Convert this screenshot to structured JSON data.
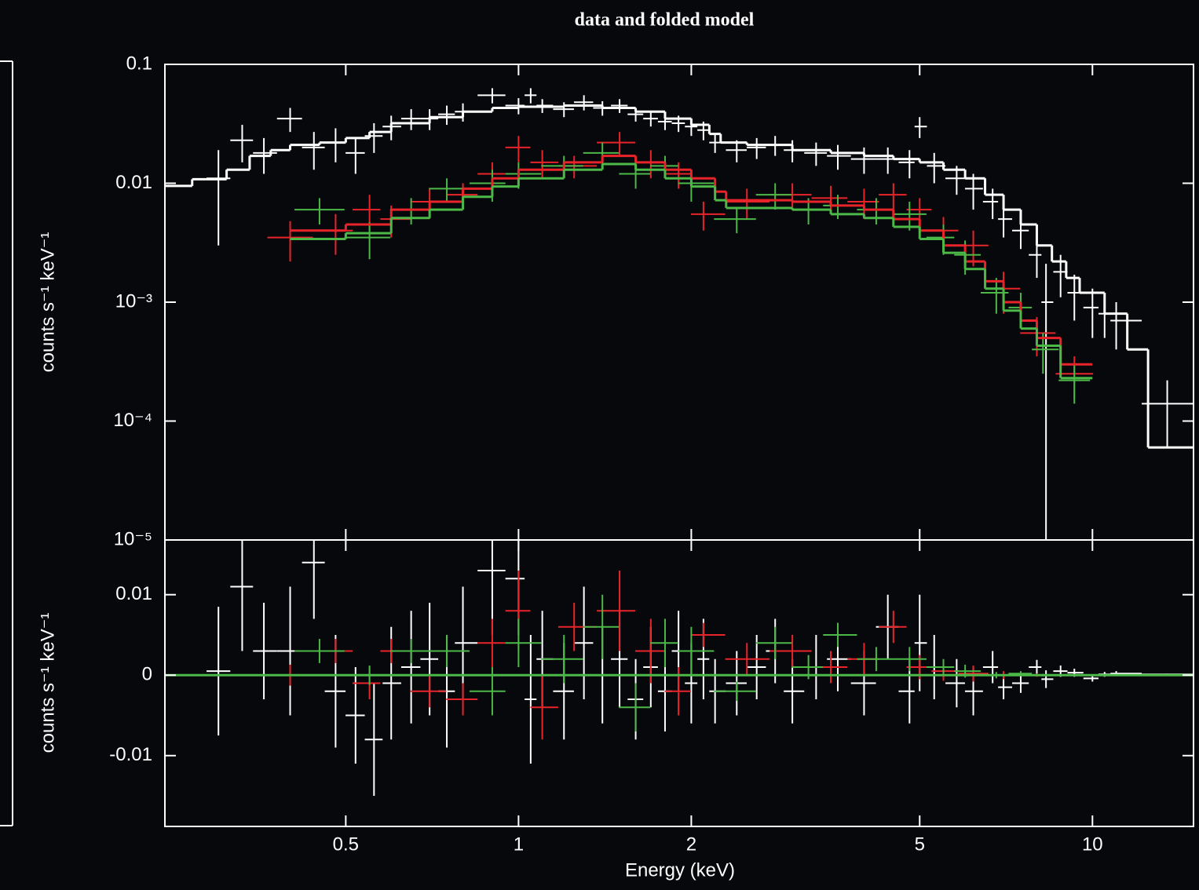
{
  "chart_data": [
    {
      "type": "spectrum",
      "title": "data and folded model",
      "ylabel": "counts s⁻¹ keV⁻¹",
      "xlog": true,
      "ylog": true,
      "xlim": [
        0.242,
        15
      ],
      "ylim": [
        1e-05,
        0.1
      ],
      "yticks": [
        0.1,
        0.01,
        {
          "value": 0.001,
          "label": "10⁻³"
        },
        {
          "value": 0.0001,
          "label": "10⁻⁴"
        },
        {
          "value": 1e-05,
          "label": "10⁻⁵"
        }
      ],
      "series": [
        {
          "kind": "cross",
          "color": "#ffffff",
          "x": [
            0.3,
            0.33,
            0.36,
            0.4,
            0.44,
            0.48,
            0.52,
            0.56,
            0.6,
            0.65,
            0.7,
            0.75,
            0.8,
            0.9,
            1.0,
            1.05,
            1.1,
            1.2,
            1.3,
            1.4,
            1.5,
            1.6,
            1.7,
            1.8,
            1.9,
            2.0,
            2.1,
            2.2,
            2.4,
            2.6,
            2.8,
            3.0,
            3.3,
            3.6,
            4.0,
            4.4,
            4.8,
            5.0,
            5.3,
            5.8,
            6.2,
            6.7,
            7.0,
            7.5,
            8.0,
            8.3,
            8.8,
            9.3,
            10.0,
            10.5,
            11.0,
            13.5
          ],
          "values": [
            0.011,
            0.023,
            0.018,
            0.035,
            0.02,
            0.022,
            0.018,
            0.025,
            0.03,
            0.035,
            0.035,
            0.038,
            0.04,
            0.055,
            0.045,
            0.055,
            0.045,
            0.042,
            0.048,
            0.043,
            0.045,
            0.038,
            0.035,
            0.033,
            0.032,
            0.03,
            0.028,
            0.022,
            0.019,
            0.02,
            0.021,
            0.019,
            0.018,
            0.017,
            0.016,
            0.016,
            0.015,
            0.03,
            0.014,
            0.011,
            0.009,
            0.007,
            0.005,
            0.004,
            0.0025,
            0.001,
            0.0018,
            0.0012,
            0.0009,
            0.0008,
            0.0007,
            0.00014
          ],
          "yerr": [
            0.008,
            0.008,
            0.006,
            0.008,
            0.007,
            0.007,
            0.006,
            0.007,
            0.007,
            0.007,
            0.007,
            0.007,
            0.007,
            0.008,
            0.007,
            0.008,
            0.006,
            0.006,
            0.007,
            0.006,
            0.006,
            0.005,
            0.005,
            0.005,
            0.005,
            0.005,
            0.005,
            0.004,
            0.004,
            0.004,
            0.004,
            0.004,
            0.004,
            0.004,
            0.004,
            0.004,
            0.004,
            0.006,
            0.004,
            0.003,
            0.003,
            0.002,
            0.0015,
            0.0012,
            0.0009,
            0.0011,
            0.0007,
            0.0005,
            0.0004,
            0.0003,
            0.0003,
            8e-05
          ]
        },
        {
          "kind": "cross",
          "color": "#e8242a",
          "x": [
            0.4,
            0.48,
            0.55,
            0.6,
            0.7,
            0.8,
            0.9,
            1.0,
            1.1,
            1.25,
            1.5,
            1.7,
            1.9,
            2.1,
            2.5,
            3.0,
            3.5,
            4.0,
            4.5,
            5.0,
            5.5,
            6.2,
            7.0,
            8.0,
            9.3
          ],
          "values": [
            0.0035,
            0.004,
            0.006,
            0.005,
            0.007,
            0.008,
            0.012,
            0.02,
            0.015,
            0.014,
            0.022,
            0.015,
            0.012,
            0.0055,
            0.007,
            0.008,
            0.0075,
            0.007,
            0.008,
            0.006,
            0.004,
            0.003,
            0.0013,
            0.00055,
            0.00025
          ],
          "yerr": [
            0.0013,
            0.0015,
            0.002,
            0.0015,
            0.002,
            0.002,
            0.003,
            0.005,
            0.004,
            0.003,
            0.005,
            0.004,
            0.003,
            0.0015,
            0.002,
            0.002,
            0.002,
            0.002,
            0.002,
            0.0015,
            0.0012,
            0.001,
            0.0005,
            0.0002,
            0.0001
          ]
        },
        {
          "kind": "cross",
          "color": "#4cb848",
          "x": [
            0.45,
            0.55,
            0.65,
            0.75,
            0.9,
            1.0,
            1.2,
            1.4,
            1.6,
            1.8,
            2.0,
            2.4,
            2.8,
            3.2,
            3.6,
            4.2,
            4.8,
            5.5,
            6.0,
            6.8,
            7.5,
            8.2,
            9.3
          ],
          "values": [
            0.006,
            0.0035,
            0.006,
            0.009,
            0.01,
            0.012,
            0.014,
            0.018,
            0.012,
            0.014,
            0.01,
            0.005,
            0.008,
            0.006,
            0.0065,
            0.006,
            0.0055,
            0.0035,
            0.0025,
            0.0012,
            0.0009,
            0.0004,
            0.00022
          ],
          "yerr": [
            0.0015,
            0.0012,
            0.0015,
            0.002,
            0.003,
            0.003,
            0.003,
            0.004,
            0.003,
            0.003,
            0.003,
            0.0012,
            0.002,
            0.0015,
            0.0015,
            0.0015,
            0.0015,
            0.001,
            0.0008,
            0.0004,
            0.0003,
            0.00015,
            8e-05
          ]
        },
        {
          "kind": "step",
          "color": "#ffffff",
          "x": [
            0.242,
            0.27,
            0.31,
            0.34,
            0.37,
            0.4,
            0.45,
            0.5,
            0.55,
            0.6,
            0.7,
            0.8,
            0.9,
            1.0,
            1.2,
            1.4,
            1.6,
            1.8,
            2.0,
            2.15,
            2.25,
            2.5,
            3.0,
            3.5,
            4.0,
            4.5,
            5.0,
            5.5,
            6.0,
            6.5,
            7.0,
            7.5,
            8.0,
            8.5,
            9.0,
            9.5,
            10.5,
            11.5,
            12.5,
            15
          ],
          "values": [
            0.0095,
            0.0108,
            0.013,
            0.017,
            0.019,
            0.021,
            0.022,
            0.024,
            0.027,
            0.032,
            0.036,
            0.04,
            0.043,
            0.044,
            0.045,
            0.043,
            0.04,
            0.035,
            0.031,
            0.026,
            0.022,
            0.021,
            0.019,
            0.018,
            0.017,
            0.016,
            0.015,
            0.013,
            0.011,
            0.008,
            0.006,
            0.0045,
            0.003,
            0.0022,
            0.0016,
            0.0012,
            0.0008,
            0.0004,
            6e-05,
            6e-05
          ]
        },
        {
          "kind": "step",
          "color": "#e8242a",
          "x": [
            0.4,
            0.5,
            0.6,
            0.7,
            0.8,
            0.9,
            1.0,
            1.2,
            1.4,
            1.6,
            1.8,
            2.0,
            2.2,
            2.3,
            3.0,
            3.5,
            4.0,
            4.5,
            5.0,
            5.5,
            6.0,
            6.5,
            7.0,
            7.5,
            8.0,
            8.8,
            10
          ],
          "values": [
            0.004,
            0.0045,
            0.006,
            0.007,
            0.009,
            0.011,
            0.013,
            0.015,
            0.017,
            0.015,
            0.013,
            0.011,
            0.0085,
            0.0072,
            0.007,
            0.0065,
            0.006,
            0.005,
            0.004,
            0.003,
            0.0022,
            0.0015,
            0.001,
            0.0007,
            0.0005,
            0.0003,
            0.0003
          ]
        },
        {
          "kind": "step",
          "color": "#4cb848",
          "x": [
            0.4,
            0.5,
            0.6,
            0.7,
            0.8,
            0.9,
            1.0,
            1.2,
            1.4,
            1.6,
            1.8,
            2.0,
            2.2,
            2.3,
            3.0,
            3.5,
            4.0,
            4.5,
            5.0,
            5.5,
            6.0,
            6.5,
            7.0,
            7.5,
            8.0,
            8.8,
            10
          ],
          "values": [
            0.0034,
            0.0038,
            0.0051,
            0.006,
            0.0077,
            0.0094,
            0.011,
            0.013,
            0.0145,
            0.013,
            0.011,
            0.0094,
            0.0072,
            0.0062,
            0.006,
            0.0055,
            0.0051,
            0.0043,
            0.0034,
            0.0026,
            0.0019,
            0.0013,
            0.00085,
            0.0006,
            0.00043,
            0.00023,
            0.00023
          ]
        }
      ]
    },
    {
      "type": "residual",
      "ylabel": "counts s⁻¹ keV⁻¹",
      "xlabel": "Energy (keV)",
      "xlog": true,
      "xlim": [
        0.242,
        15
      ],
      "ylim": [
        -0.0188,
        0.0168
      ],
      "xticks": [
        0.5,
        1,
        2,
        5,
        10
      ],
      "yticks": [
        0.01,
        0,
        -0.01
      ],
      "hline": 0,
      "hline_color": "#4cb848",
      "series": [
        {
          "color": "#ffffff",
          "values": [
            0.0005,
            0.011,
            0.003,
            0.003,
            0.014,
            -0.002,
            -0.005,
            -0.008,
            -0.001,
            0.001,
            0.002,
            -0.002,
            0.004,
            0.013,
            0.012,
            -0.003,
            0.002,
            -0.002,
            0.004,
            0,
            0.002,
            -0.003,
            0.001,
            -0.002,
            0.003,
            -0.001,
            0.002,
            -0.002,
            -0.001,
            0.001,
            0.003,
            -0.002,
            0.001,
            0.002,
            -0.001,
            0.006,
            -0.002,
            0.004,
            0.001,
            -0.001,
            -0.002,
            0.001,
            -0.0015,
            -0.001,
            0.001,
            -0.0005,
            0.0005,
            0.0003,
            -0.0004,
            0.0001,
            0.0002,
            0.0001
          ]
        },
        {
          "color": "#e8242a",
          "values": [
            0,
            0.003,
            -0.001,
            0.003,
            -0.002,
            -0.003,
            0.004,
            0.008,
            -0.004,
            0.006,
            0.008,
            0.003,
            -0.002,
            0.005,
            0.002,
            0.003,
            0.001,
            0.002,
            0.006,
            0.001,
            0.0005,
            0.0002,
            0,
            0,
            0
          ]
        },
        {
          "color": "#4cb848",
          "values": [
            0.003,
            0,
            0.003,
            0.003,
            -0.002,
            0.004,
            0.002,
            0.006,
            -0.004,
            0.004,
            0.003,
            -0.002,
            0.004,
            0.001,
            0.005,
            0.002,
            0.002,
            0.001,
            0.0005,
            0,
            0.0002,
            0,
            0
          ]
        }
      ]
    }
  ]
}
